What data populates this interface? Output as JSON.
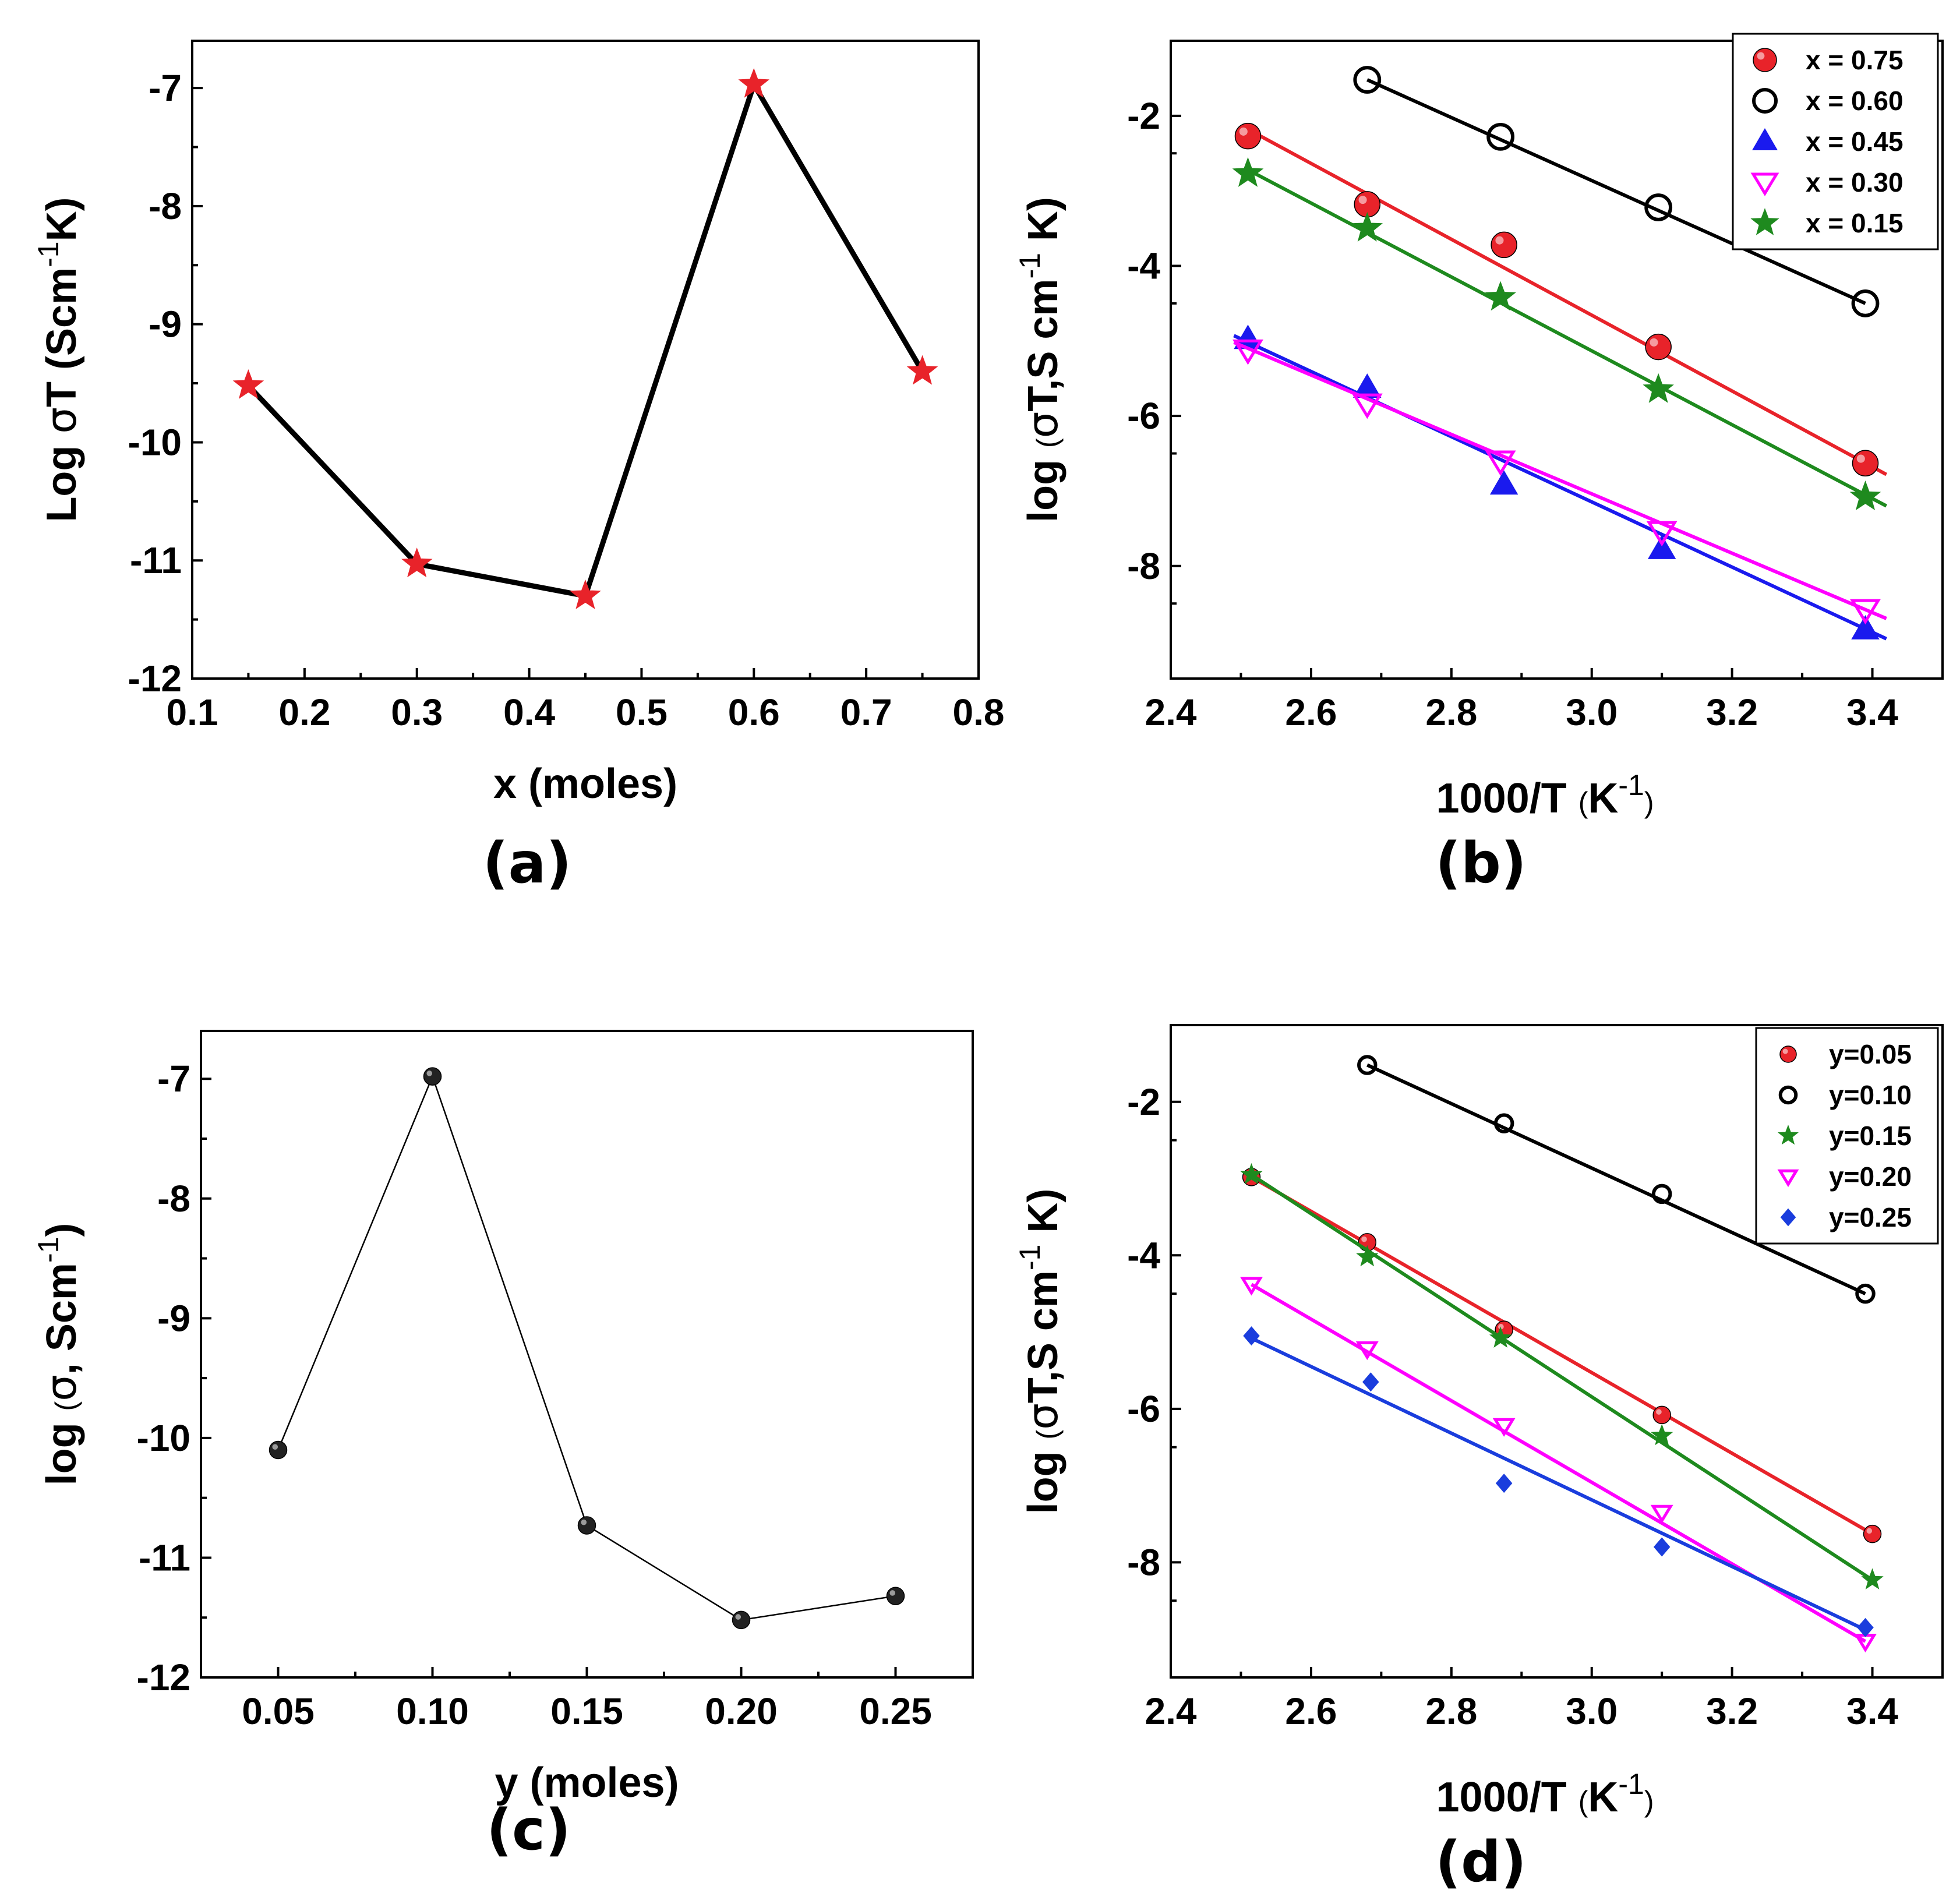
{
  "chart_data": [
    {
      "id": "a",
      "type": "line",
      "panel_label": "(a)",
      "xlabel": "x (moles)",
      "ylabel": {
        "pre": "Log ",
        "sym": "σ",
        "mid": "T (Scm",
        "sup": "-1",
        "post": "K)"
      },
      "xlim": [
        0.1,
        0.8
      ],
      "ylim": [
        -12,
        -6.6
      ],
      "xticks": [
        0.1,
        0.2,
        0.3,
        0.4,
        0.5,
        0.6,
        0.7,
        0.8
      ],
      "xtick_labels": [
        "0.1",
        "0.2",
        "0.3",
        "0.4",
        "0.5",
        "0.6",
        "0.7",
        "0.8"
      ],
      "yticks": [
        -12,
        -11,
        -10,
        -9,
        -8,
        -7
      ],
      "ytick_labels": [
        "-12",
        "-11",
        "-10",
        "-9",
        "-8",
        "-7"
      ],
      "marker": "star",
      "marker_color": "#e8232a",
      "line_color": "#000000",
      "x": [
        0.15,
        0.3,
        0.45,
        0.6,
        0.75
      ],
      "y": [
        -9.52,
        -11.03,
        -11.3,
        -6.97,
        -9.4
      ]
    },
    {
      "id": "b",
      "type": "scatter",
      "panel_label": "(b)",
      "xlabel": {
        "main": "1000/T ",
        "paren_open": "(",
        "unit": "K",
        "sup": "-1",
        "paren_close": ")"
      },
      "ylabel": {
        "pre": "log ",
        "paren": "(",
        "sym": "σ",
        "mid": "T,S cm",
        "sup": "-1",
        "post": " K)"
      },
      "xlim": [
        2.4,
        3.5
      ],
      "ylim": [
        -9.5,
        -1
      ],
      "xticks": [
        2.4,
        2.6,
        2.8,
        3.0,
        3.2,
        3.4
      ],
      "xtick_labels": [
        "2.4",
        "2.6",
        "2.8",
        "3.0",
        "3.2",
        "3.4"
      ],
      "yticks": [
        -8,
        -6,
        -4,
        -2
      ],
      "ytick_labels": [
        "-8",
        "-6",
        "-4",
        "-2"
      ],
      "legend_position": "top-right",
      "series": [
        {
          "name": "x = 0.75",
          "color": "#e8232a",
          "marker": "ball",
          "x": [
            2.51,
            2.68,
            2.875,
            3.095,
            3.39
          ],
          "y": [
            -2.27,
            -3.18,
            -3.72,
            -5.08,
            -6.63
          ],
          "fit": [
            [
              2.51,
              -2.18
            ],
            [
              3.42,
              -6.78
            ]
          ]
        },
        {
          "name": "x = 0.60",
          "color": "#000000",
          "marker": "open-circle",
          "x": [
            2.68,
            2.87,
            3.095,
            3.39
          ],
          "y": [
            -1.52,
            -2.28,
            -3.22,
            -4.5
          ],
          "fit": [
            [
              2.68,
              -1.52
            ],
            [
              3.39,
              -4.5
            ]
          ]
        },
        {
          "name": "x = 0.45",
          "color": "#1a1aee",
          "marker": "triangle",
          "x": [
            2.51,
            2.68,
            2.875,
            3.1,
            3.39
          ],
          "y": [
            -4.98,
            -5.63,
            -6.92,
            -7.78,
            -8.85
          ],
          "fit": [
            [
              2.49,
              -4.93
            ],
            [
              3.42,
              -8.97
            ]
          ]
        },
        {
          "name": "x = 0.30",
          "color": "#ff00ff",
          "marker": "open-triangle-down",
          "x": [
            2.51,
            2.68,
            2.87,
            3.1,
            3.39
          ],
          "y": [
            -5.12,
            -5.84,
            -6.6,
            -7.54,
            -8.58
          ],
          "fit": [
            [
              2.49,
              -5.02
            ],
            [
              3.42,
              -8.7
            ]
          ]
        },
        {
          "name": "x = 0.15",
          "color": "#1e8a1e",
          "marker": "star",
          "x": [
            2.51,
            2.68,
            2.87,
            3.095,
            3.39
          ],
          "y": [
            -2.77,
            -3.5,
            -4.42,
            -5.65,
            -7.08
          ],
          "fit": [
            [
              2.51,
              -2.72
            ],
            [
              3.42,
              -7.2
            ]
          ]
        }
      ]
    },
    {
      "id": "c",
      "type": "line",
      "panel_label": "(c)",
      "xlabel": "y (moles)",
      "ylabel": {
        "pre": "log ",
        "paren": "(",
        "sym": "σ",
        "mid": ",  Scm",
        "sup": "-1",
        "post": ")"
      },
      "xlim": [
        0.025,
        0.275
      ],
      "ylim": [
        -12,
        -6.6
      ],
      "xticks": [
        0.05,
        0.1,
        0.15,
        0.2,
        0.25
      ],
      "xtick_labels": [
        "0.05",
        "0.10",
        "0.15",
        "0.20",
        "0.25"
      ],
      "yticks": [
        -12,
        -11,
        -10,
        -9,
        -8,
        -7
      ],
      "ytick_labels": [
        "-12",
        "-11",
        "-10",
        "-9",
        "-8",
        "-7"
      ],
      "marker": "ball",
      "marker_color": "#222222",
      "line_color": "#000000",
      "x": [
        0.05,
        0.1,
        0.15,
        0.2,
        0.25
      ],
      "y": [
        -10.1,
        -6.98,
        -10.73,
        -11.52,
        -11.32
      ]
    },
    {
      "id": "d",
      "type": "scatter",
      "panel_label": "(d)",
      "xlabel": {
        "main": "1000/T ",
        "paren_open": "(",
        "unit": "K",
        "sup": "-1",
        "paren_close": ")"
      },
      "ylabel": {
        "pre": "log ",
        "paren": "(",
        "sym": "σ",
        "mid": "T,S cm",
        "sup": "-1",
        "post": " K)"
      },
      "xlim": [
        2.4,
        3.5
      ],
      "ylim": [
        -9.5,
        -1
      ],
      "xticks": [
        2.4,
        2.6,
        2.8,
        3.0,
        3.2,
        3.4
      ],
      "xtick_labels": [
        "2.4",
        "2.6",
        "2.8",
        "3.0",
        "3.2",
        "3.4"
      ],
      "yticks": [
        -8,
        -6,
        -4,
        -2
      ],
      "ytick_labels": [
        "-8",
        "-6",
        "-4",
        "-2"
      ],
      "legend_position": "top-right",
      "series": [
        {
          "name": "y=0.05",
          "color": "#e8232a",
          "marker": "ball",
          "x": [
            2.515,
            2.68,
            2.875,
            3.1,
            3.4
          ],
          "y": [
            -2.98,
            -3.83,
            -4.97,
            -6.08,
            -7.63
          ],
          "fit": [
            [
              2.515,
              -2.98
            ],
            [
              3.4,
              -7.63
            ]
          ]
        },
        {
          "name": "y=0.10",
          "color": "#000000",
          "marker": "open-circle",
          "x": [
            2.68,
            2.875,
            3.1,
            3.39
          ],
          "y": [
            -1.52,
            -2.28,
            -3.2,
            -4.5
          ],
          "fit": [
            [
              2.68,
              -1.52
            ],
            [
              3.39,
              -4.5
            ]
          ]
        },
        {
          "name": "y=0.15",
          "color": "#1e8a1e",
          "marker": "star",
          "x": [
            2.515,
            2.68,
            2.87,
            3.1,
            3.4
          ],
          "y": [
            -2.95,
            -4.02,
            -5.08,
            -6.35,
            -8.23
          ],
          "fit": [
            [
              2.515,
              -2.95
            ],
            [
              3.4,
              -8.23
            ]
          ]
        },
        {
          "name": "y=0.20",
          "color": "#ff00ff",
          "marker": "open-triangle-down",
          "x": [
            2.515,
            2.68,
            2.875,
            3.1,
            3.39
          ],
          "y": [
            -4.38,
            -5.22,
            -6.22,
            -7.35,
            -9.03
          ],
          "fit": [
            [
              2.515,
              -4.38
            ],
            [
              3.39,
              -9.03
            ]
          ]
        },
        {
          "name": "y=0.25",
          "color": "#1a3ddd",
          "marker": "diamond",
          "x": [
            2.515,
            2.685,
            2.875,
            3.1,
            3.39
          ],
          "y": [
            -5.05,
            -5.65,
            -6.97,
            -7.8,
            -8.85
          ],
          "fit": [
            [
              2.515,
              -5.08
            ],
            [
              3.39,
              -8.88
            ]
          ]
        }
      ]
    }
  ]
}
